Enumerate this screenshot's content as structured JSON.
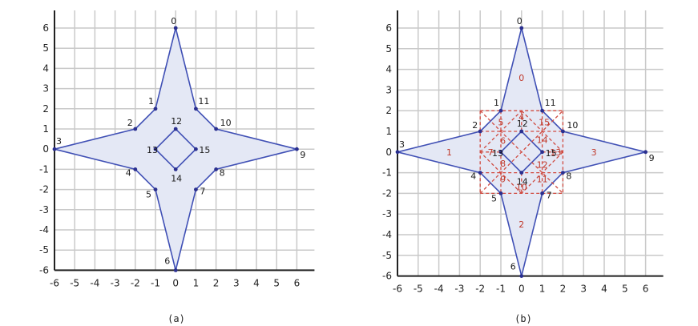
{
  "panels": [
    {
      "id": "a",
      "caption": "(a)",
      "x_ticks": [
        "-6",
        "-5",
        "-4",
        "-3",
        "-2",
        "-1",
        "0",
        "1",
        "2",
        "3",
        "4",
        "5",
        "6"
      ],
      "y_ticks": [
        "6",
        "5",
        "4",
        "3",
        "2",
        "1",
        "0",
        "-1",
        "-2",
        "-3",
        "-4",
        "-5",
        "-6"
      ],
      "show_regions": false
    },
    {
      "id": "b",
      "caption": "(b)",
      "x_ticks": [
        "-6",
        "-5",
        "-4",
        "-3",
        "-2",
        "-1",
        "0",
        "1",
        "2",
        "3",
        "4",
        "5",
        "6"
      ],
      "y_ticks": [
        "6",
        "5",
        "4",
        "3",
        "2",
        "1",
        "0",
        "-1",
        "-2",
        "-3",
        "-4",
        "-5",
        "-6"
      ],
      "show_regions": true
    }
  ],
  "vertices": [
    {
      "label": "0",
      "x": 0,
      "y": 6
    },
    {
      "label": "1",
      "x": -1,
      "y": 2
    },
    {
      "label": "2",
      "x": -2,
      "y": 1
    },
    {
      "label": "3",
      "x": -6,
      "y": 0
    },
    {
      "label": "4",
      "x": -2,
      "y": -1
    },
    {
      "label": "5",
      "x": -1,
      "y": -2
    },
    {
      "label": "6",
      "x": 0,
      "y": -6
    },
    {
      "label": "7",
      "x": 1,
      "y": -2
    },
    {
      "label": "8",
      "x": 2,
      "y": -1
    },
    {
      "label": "9",
      "x": 6,
      "y": 0
    },
    {
      "label": "10",
      "x": 2,
      "y": 1
    },
    {
      "label": "11",
      "x": 1,
      "y": 2
    },
    {
      "label": "12",
      "x": 0,
      "y": 1
    },
    {
      "label": "13",
      "x": -1,
      "y": 0
    },
    {
      "label": "14",
      "x": 0,
      "y": -1
    },
    {
      "label": "15",
      "x": 1,
      "y": 0
    }
  ],
  "regions": [
    {
      "label": "0",
      "x": 0,
      "y": 3.6
    },
    {
      "label": "1",
      "x": -3.5,
      "y": 0
    },
    {
      "label": "2",
      "x": 0,
      "y": -3.5
    },
    {
      "label": "3",
      "x": 3.5,
      "y": 0
    },
    {
      "label": "4",
      "x": 0,
      "y": 1.7
    },
    {
      "label": "5",
      "x": -1,
      "y": 1.45
    },
    {
      "label": "6",
      "x": -0.9,
      "y": 0.55
    },
    {
      "label": "7",
      "x": -1.5,
      "y": 0
    },
    {
      "label": "8",
      "x": -0.9,
      "y": -0.55
    },
    {
      "label": "9",
      "x": -0.9,
      "y": -1.3
    },
    {
      "label": "10",
      "x": 0,
      "y": -1.7
    },
    {
      "label": "11",
      "x": 1,
      "y": -1.3
    },
    {
      "label": "12",
      "x": 1,
      "y": -0.6
    },
    {
      "label": "13",
      "x": 1.65,
      "y": 0
    },
    {
      "label": "14",
      "x": 1,
      "y": 0.6
    },
    {
      "label": "15",
      "x": 1.1,
      "y": 1.45
    }
  ],
  "colors": {
    "grid": "#c9c9c9",
    "axis": "#222222",
    "fill": "#e4e8f5",
    "edge": "#4050b5",
    "dot": "#2a2f8f",
    "region_edge": "#d04a40",
    "region_label": "#c0392b"
  }
}
